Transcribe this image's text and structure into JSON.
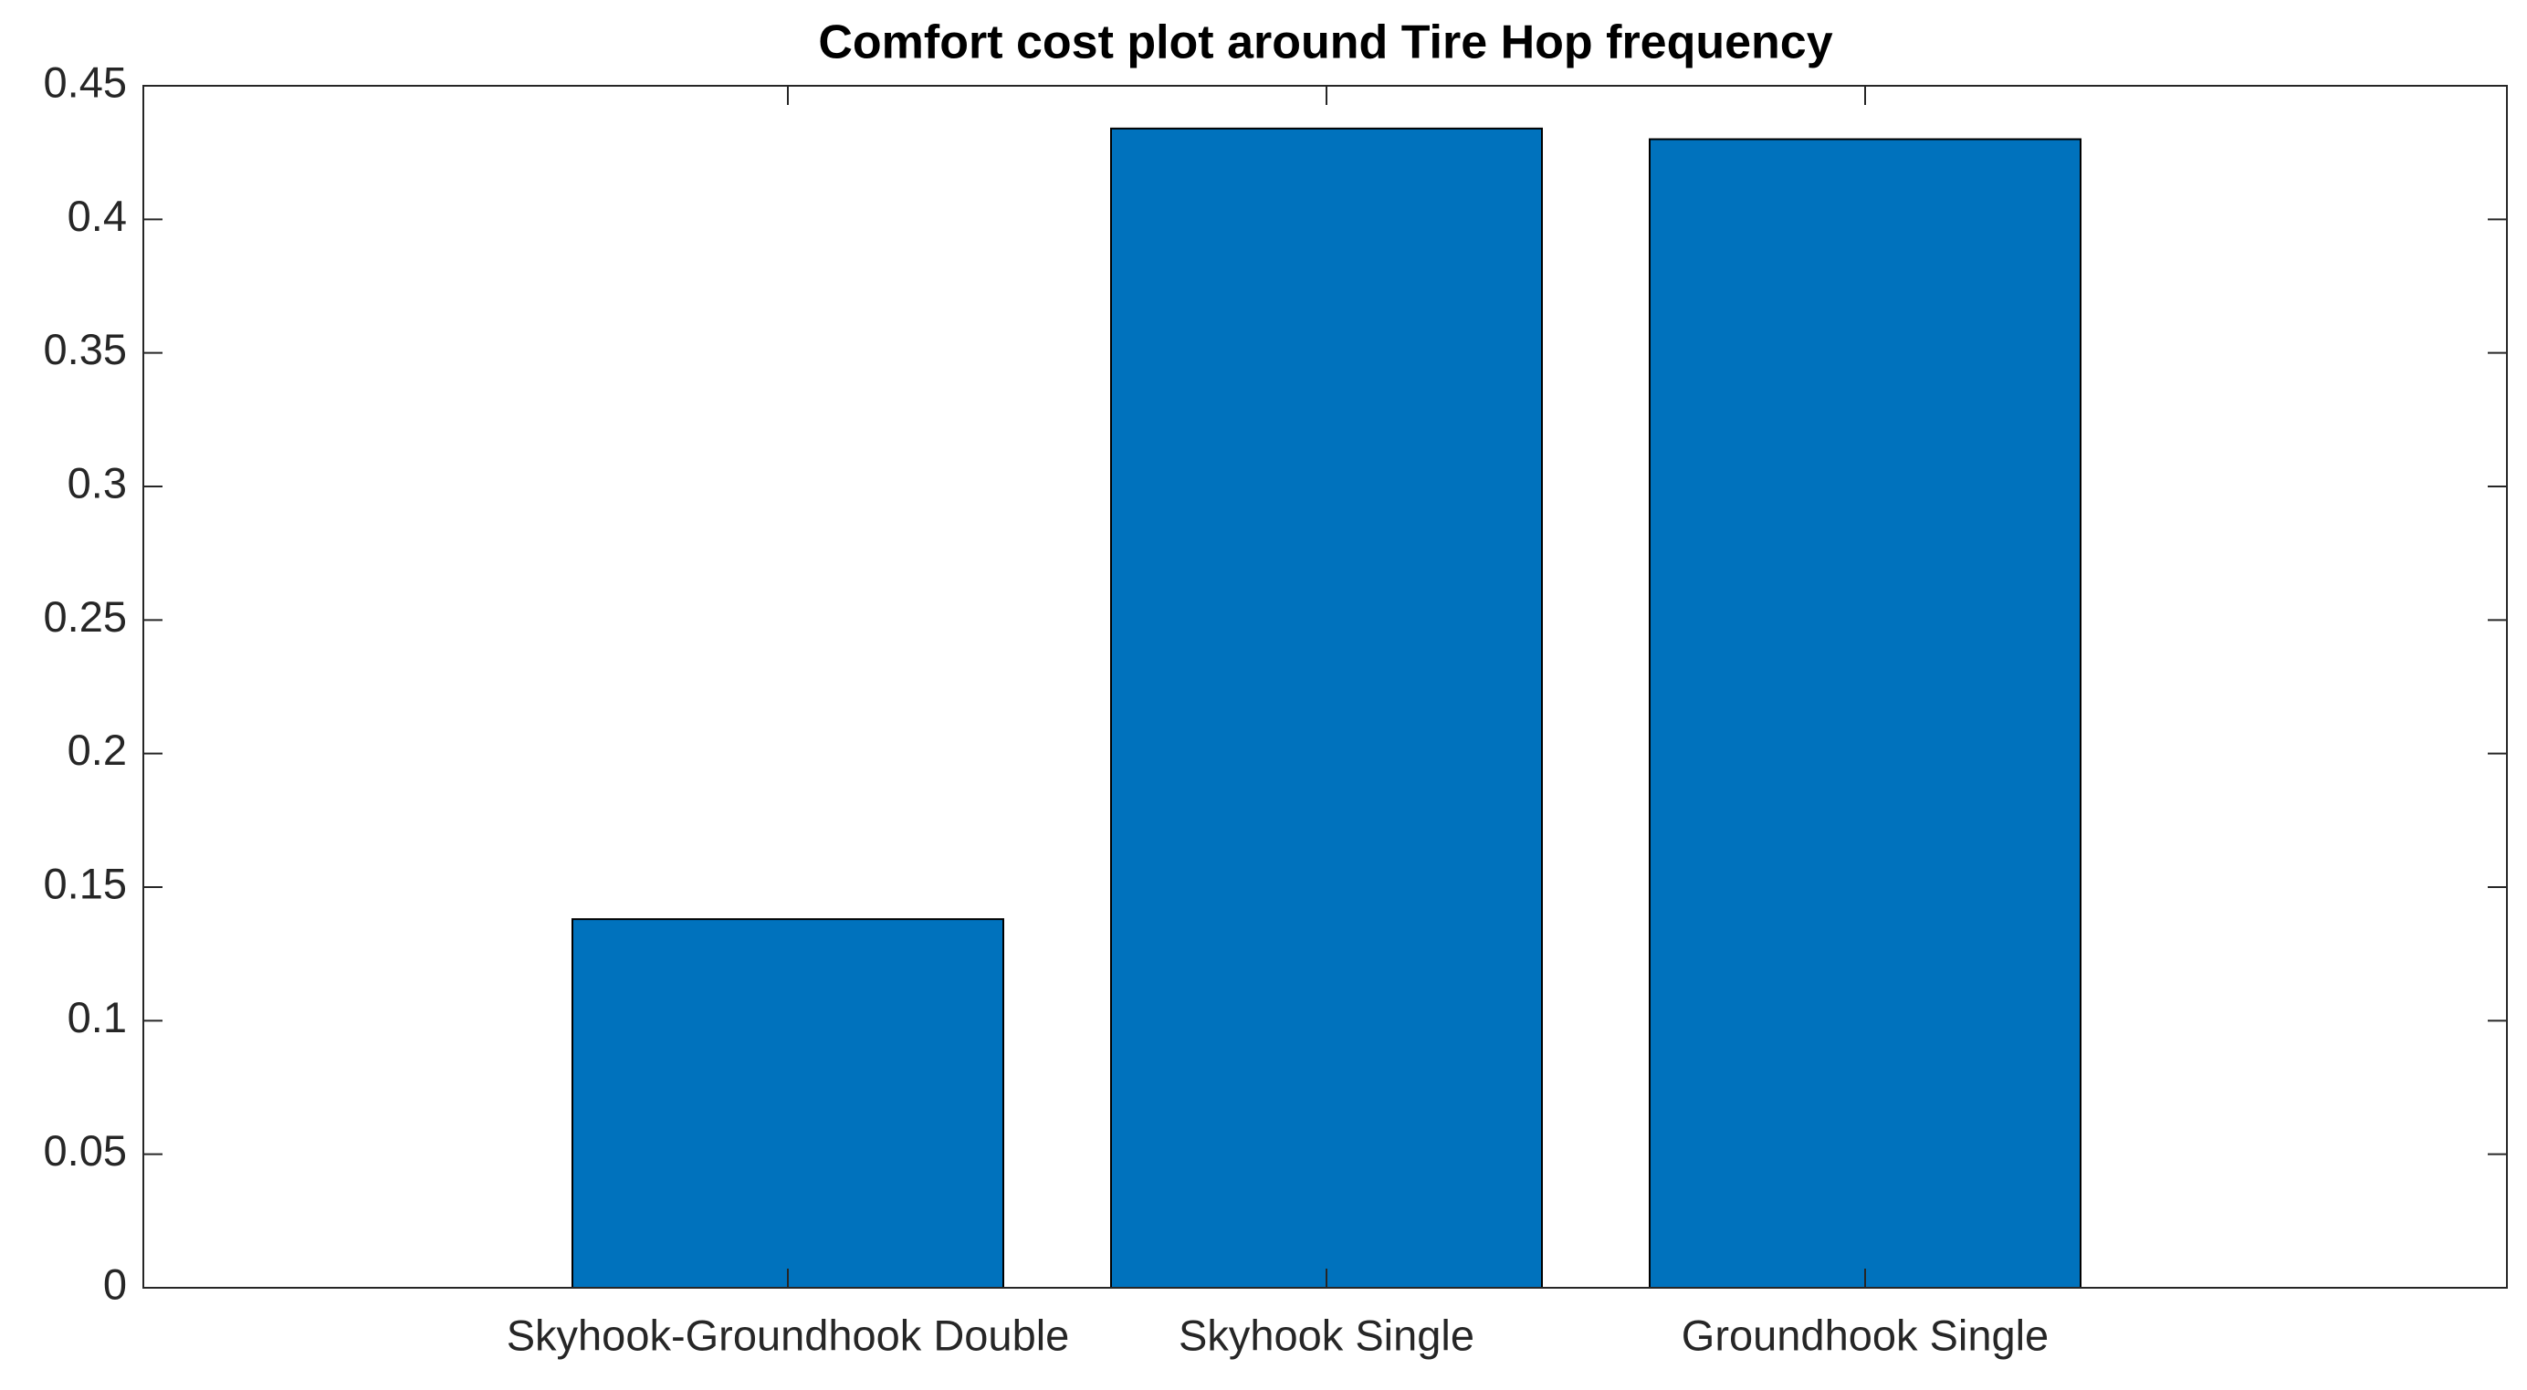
{
  "chart_data": {
    "type": "bar",
    "title": "Comfort cost plot around Tire Hop frequency",
    "categories": [
      "Skyhook-Groundhook Double",
      "Skyhook Single",
      "Groundhook Single"
    ],
    "values": [
      0.138,
      0.434,
      0.43
    ],
    "color": "#0072BD",
    "ylim": [
      0,
      0.45
    ],
    "yticks": [
      0,
      0.05,
      0.1,
      0.15,
      0.2,
      0.25,
      0.3,
      0.35,
      0.4,
      0.45
    ],
    "grid": false
  }
}
